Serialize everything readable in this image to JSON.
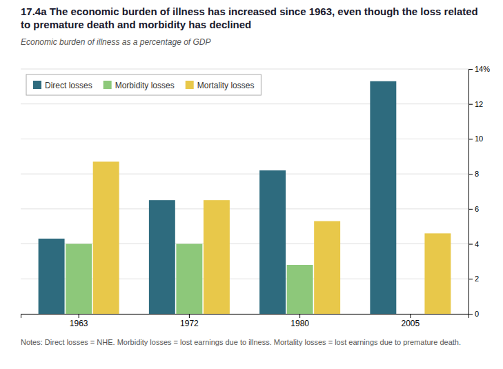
{
  "chart_data": {
    "type": "bar",
    "title": "17.4a The economic burden of illness has increased since 1963, even though the loss related to premature death and morbidity has declined",
    "subtitle": "Economic burden of illness as a percentage of GDP",
    "annotations": [
      "Notes: Direct losses = NHE. Morbidity losses = lost earnings due to illness. Mortality losses = lost earnings due to premature death."
    ],
    "categories": [
      "1963",
      "1972",
      "1980",
      "2005"
    ],
    "series": [
      {
        "name": "Direct losses",
        "color": "#2e6b7e",
        "values": [
          4.3,
          6.5,
          8.2,
          13.3
        ]
      },
      {
        "name": "Morbidity losses",
        "color": "#8dc87a",
        "values": [
          4.0,
          4.0,
          2.8,
          0.0
        ]
      },
      {
        "name": "Mortality losses",
        "color": "#e8c84a",
        "values": [
          8.7,
          6.5,
          5.3,
          4.6
        ]
      }
    ],
    "ylim": [
      0,
      14
    ],
    "yticks": [
      0,
      2,
      4,
      6,
      8,
      10,
      12,
      {
        "value": 14,
        "label": "14%"
      }
    ],
    "grid": true,
    "legend": "upper left"
  }
}
